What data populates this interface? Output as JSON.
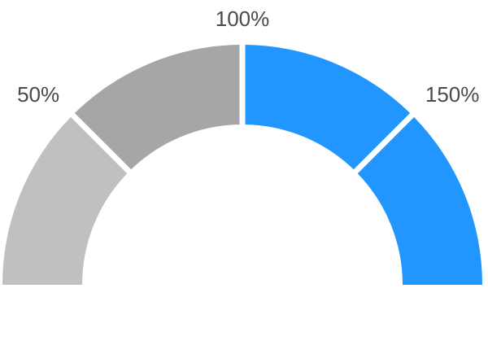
{
  "chart_data": {
    "type": "gauge",
    "range": [
      0,
      200
    ],
    "segments": [
      {
        "from": 0,
        "to": 50,
        "color": "#c0c0c0"
      },
      {
        "from": 50,
        "to": 100,
        "color": "#a6a6a6"
      },
      {
        "from": 100,
        "to": 150,
        "color": "#2196ff"
      },
      {
        "from": 150,
        "to": 200,
        "color": "#2196ff"
      }
    ],
    "tick_labels": [
      {
        "value": 50,
        "text": "50%"
      },
      {
        "value": 100,
        "text": "100%"
      },
      {
        "value": 150,
        "text": "150%"
      }
    ]
  }
}
